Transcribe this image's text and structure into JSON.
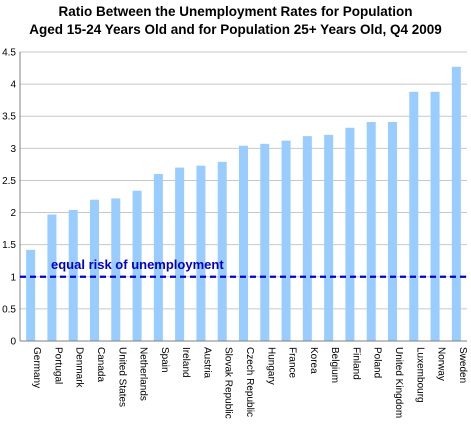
{
  "chart_data": {
    "type": "bar",
    "title": "Ratio Between the Unemployment Rates for Population",
    "subtitle": "Aged 15-24 Years Old and for Population 25+ Years Old, Q4 2009",
    "categories": [
      "Germany",
      "Portugal",
      "Denmark",
      "Canada",
      "United States",
      "Netherlands",
      "Spain",
      "Ireland",
      "Austria",
      "Slovak Republic",
      "Czech Republic",
      "Hungary",
      "France",
      "Korea",
      "Belgium",
      "Finland",
      "Poland",
      "United Kingdom",
      "Luxembourg",
      "Norway",
      "Sweden"
    ],
    "values": [
      1.42,
      1.97,
      2.04,
      2.2,
      2.22,
      2.34,
      2.6,
      2.7,
      2.73,
      2.79,
      3.04,
      3.07,
      3.12,
      3.19,
      3.21,
      3.32,
      3.41,
      3.41,
      3.88,
      3.88,
      4.27
    ],
    "ylim": [
      0,
      4.5
    ],
    "yticks": [
      "0",
      "0.5",
      "1",
      "1.5",
      "2",
      "2.5",
      "3",
      "3.5",
      "4",
      "4.5"
    ],
    "xlabel": "",
    "ylabel": "",
    "grid": true,
    "bar_color": "#99ccff",
    "reference_line": {
      "value": 1,
      "label": "equal risk of unemployment",
      "color": "#0000cc"
    }
  }
}
